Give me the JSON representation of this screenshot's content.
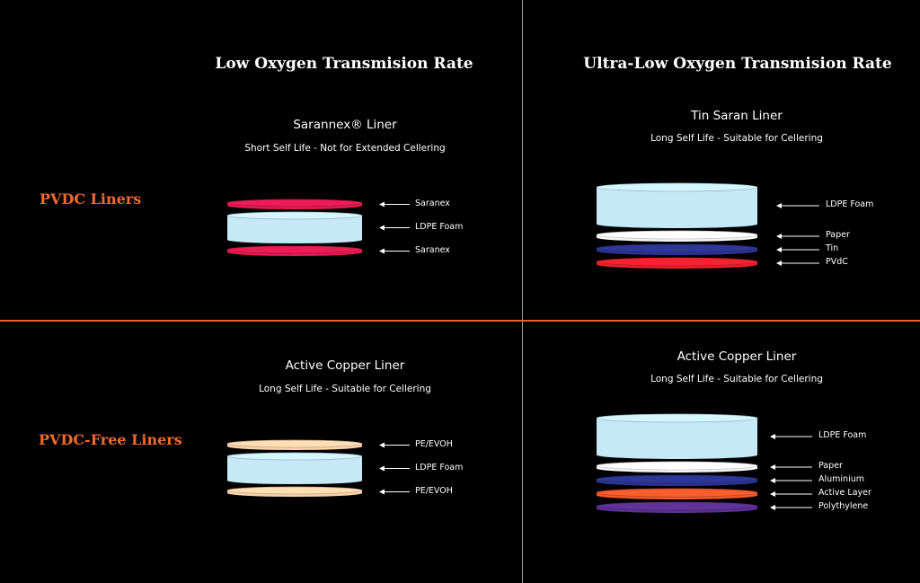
{
  "headings": {
    "low": "Low Oxygen Transmision Rate",
    "ultra": "Ultra-Low Oxygen Transmision Rate"
  },
  "rows": {
    "pvdc": "PVDC Liners",
    "pvdc_free": "PVDC-Free Liners"
  },
  "colors": {
    "saranex": "#e01a52",
    "ldpe_foam": "#c6e9f6",
    "paper": "#f7f7f7",
    "tin": "#2b3390",
    "pvdc": "#e8202c",
    "pe_evoh": "#fbd2aa",
    "aluminium": "#2b3390",
    "active_layer": "#f0582a",
    "polythylene": "#5b2f91",
    "accent": "#f26a2b"
  },
  "liners": [
    {
      "id": "saranex",
      "title": "Sarannex® Liner",
      "subtitle": "Short Self Life - Not for Extended Cellering",
      "layers": [
        {
          "label": "Saranex",
          "color": "#e01a52",
          "thickness": "thin"
        },
        {
          "label": "LDPE Foam",
          "color": "#c6e9f6",
          "thickness": "thick"
        },
        {
          "label": "Saranex",
          "color": "#e01a52",
          "thickness": "thin"
        }
      ]
    },
    {
      "id": "tin-saran",
      "title": "Tin Saran Liner",
      "subtitle": "Long Self Life - Suitable for Cellering",
      "layers": [
        {
          "label": "LDPE Foam",
          "color": "#c6e9f6",
          "thickness": "thick"
        },
        {
          "label": "Paper",
          "color": "#f7f7f7",
          "thickness": "thin"
        },
        {
          "label": "Tin",
          "color": "#2b3390",
          "thickness": "thin"
        },
        {
          "label": "PVdC",
          "color": "#e8202c",
          "thickness": "thin"
        }
      ]
    },
    {
      "id": "active-copper-low",
      "title": "Active Copper Liner",
      "subtitle": "Long Self Life - Suitable for Cellering",
      "layers": [
        {
          "label": "PE/EVOH",
          "color": "#fbd2aa",
          "thickness": "thin"
        },
        {
          "label": "LDPE Foam",
          "color": "#c6e9f6",
          "thickness": "thick"
        },
        {
          "label": "PE/EVOH",
          "color": "#fbd2aa",
          "thickness": "thin"
        }
      ]
    },
    {
      "id": "active-copper-ultra",
      "title": "Active Copper Liner",
      "subtitle": "Long Self Life - Suitable for Cellering",
      "layers": [
        {
          "label": "LDPE Foam",
          "color": "#c6e9f6",
          "thickness": "thick"
        },
        {
          "label": "Paper",
          "color": "#f7f7f7",
          "thickness": "thin"
        },
        {
          "label": "Aluminium",
          "color": "#2b3390",
          "thickness": "thin"
        },
        {
          "label": "Active Layer",
          "color": "#f0582a",
          "thickness": "thin"
        },
        {
          "label": "Polythylene",
          "color": "#5b2f91",
          "thickness": "thin"
        }
      ]
    }
  ]
}
